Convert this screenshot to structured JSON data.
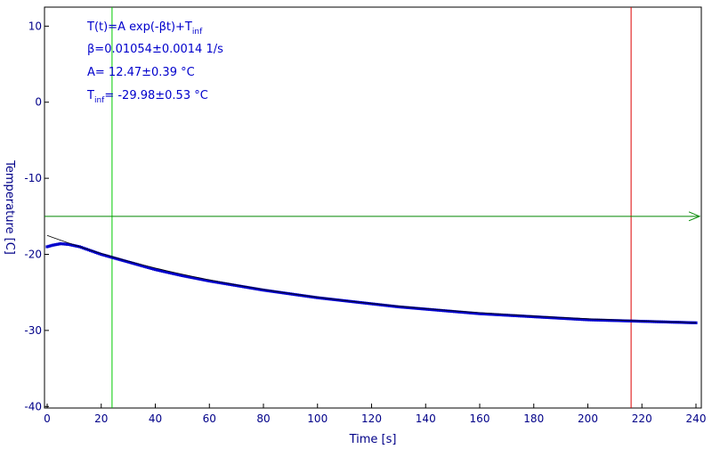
{
  "chart_data": {
    "type": "scatter",
    "title": "",
    "xlabel": "Time [s]",
    "ylabel": "Temperature [C]",
    "xlim": [
      0,
      240
    ],
    "ylim": [
      -40,
      10
    ],
    "x_ticks": [
      0,
      20,
      40,
      60,
      80,
      100,
      120,
      140,
      160,
      180,
      200,
      220,
      240
    ],
    "y_ticks": [
      10,
      0,
      -10,
      -20,
      -30,
      -40
    ],
    "grid": false,
    "series": [
      {
        "color": "#0000cc",
        "x": [
          0,
          2,
          5,
          8,
          12,
          16,
          20,
          24,
          28,
          32,
          40,
          50,
          60,
          70,
          80,
          90,
          100,
          110,
          120,
          130,
          140,
          150,
          160,
          170,
          180,
          190,
          200,
          210,
          220,
          230,
          240
        ],
        "y": [
          -19.0,
          -18.8,
          -18.6,
          -18.7,
          -19.0,
          -19.5,
          -20.0,
          -20.4,
          -20.8,
          -21.2,
          -22.0,
          -22.8,
          -23.5,
          -24.1,
          -24.7,
          -25.2,
          -25.7,
          -26.1,
          -26.5,
          -26.9,
          -27.2,
          -27.5,
          -27.8,
          -28.0,
          -28.2,
          -28.4,
          -28.6,
          -28.7,
          -28.8,
          -28.9,
          -29.0
        ]
      }
    ],
    "fit": {
      "color": "#000000",
      "A": 12.47,
      "beta": 0.01054,
      "T_inf": -29.98,
      "x_range": [
        0,
        240
      ]
    },
    "markers": {
      "vertical_lines": [
        {
          "x": 24,
          "color": "#00cc00"
        },
        {
          "x": 216,
          "color": "#dd0000"
        }
      ],
      "horizontal_line": {
        "y": -15,
        "color": "#008800"
      }
    },
    "annotations": {
      "formula_main": "T(t)=A exp(-βt)+T",
      "formula_sub": "inf",
      "beta": "β=0.01054±0.0014 1/s",
      "a": "A= 12.47±0.39 °C",
      "tinf_main": "T",
      "tinf_sub": "inf",
      "tinf_rest": "= -29.98±0.53 °C"
    }
  }
}
